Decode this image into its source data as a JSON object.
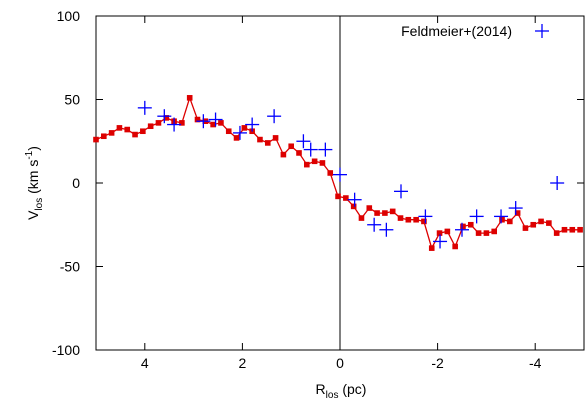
{
  "chart_data": {
    "type": "line",
    "xlabel": {
      "main": "R",
      "sub": "los",
      "unit": " (pc)"
    },
    "ylabel": {
      "main": "V",
      "sub": "los",
      "unit_pre": " (km s",
      "unit_sup": "-1",
      "unit_post": ")"
    },
    "xlim": [
      5,
      -5
    ],
    "ylim": [
      -100,
      100
    ],
    "x_ticks": [
      4,
      2,
      0,
      -2,
      -4
    ],
    "x_tick_labels": [
      "4",
      "2",
      "0",
      "-2",
      "-4"
    ],
    "y_ticks": [
      100,
      50,
      0,
      -50,
      -100
    ],
    "y_tick_labels": [
      "100",
      "50",
      "0",
      "-50",
      "-100"
    ],
    "vertical_line_at": 0,
    "colors": {
      "line_series": "#dd0000",
      "marker_series": "#0000ff",
      "axis": "#000000"
    },
    "series": [
      {
        "style": "line-with-square-markers",
        "x": [
          5.0,
          4.84,
          4.68,
          4.52,
          4.36,
          4.2,
          4.04,
          3.88,
          3.72,
          3.56,
          3.4,
          3.24,
          3.08,
          2.92,
          2.76,
          2.6,
          2.44,
          2.28,
          2.12,
          1.96,
          1.8,
          1.64,
          1.48,
          1.32,
          1.16,
          1.0,
          0.84,
          0.68,
          0.52,
          0.36,
          0.2,
          0.04,
          -0.12,
          -0.28,
          -0.44,
          -0.6,
          -0.76,
          -0.92,
          -1.08,
          -1.24,
          -1.4,
          -1.56,
          -1.72,
          -1.88,
          -2.04,
          -2.2,
          -2.36,
          -2.52,
          -2.68,
          -2.84,
          -3.0,
          -3.16,
          -3.32,
          -3.48,
          -3.64,
          -3.8,
          -3.96,
          -4.12,
          -4.28,
          -4.44,
          -4.6,
          -4.76,
          -4.92
        ],
        "y": [
          26,
          28,
          30,
          33,
          32,
          29,
          31,
          34,
          36,
          39,
          37,
          36,
          51,
          38,
          37,
          35,
          36,
          31,
          27,
          33,
          31,
          26,
          24,
          27,
          17,
          22,
          18,
          11,
          13,
          12,
          6,
          -8,
          -9,
          -14,
          -21,
          -15,
          -18,
          -18,
          -17,
          -21,
          -22,
          -22,
          -23,
          -39,
          -30,
          -29,
          -38,
          -26,
          -25,
          -30,
          -30,
          -29,
          -22,
          -23,
          -18,
          -27,
          -25,
          -23,
          -24,
          -30,
          -28,
          -28,
          -28
        ]
      },
      {
        "name": "Feldmeier+(2014)",
        "style": "plus-markers",
        "x": [
          4.0,
          3.6,
          3.4,
          2.8,
          2.55,
          2.05,
          1.8,
          1.35,
          0.75,
          0.6,
          0.3,
          0.0,
          -0.3,
          -0.7,
          -0.95,
          -1.25,
          -1.75,
          -2.05,
          -2.5,
          -2.8,
          -3.3,
          -3.6,
          -4.45
        ],
        "y": [
          45,
          40,
          35,
          37,
          38,
          30,
          35,
          40,
          25,
          20,
          20,
          5,
          -10,
          -25,
          -28,
          -5,
          -20,
          -35,
          -28,
          -20,
          -20,
          -15,
          0
        ]
      }
    ]
  }
}
